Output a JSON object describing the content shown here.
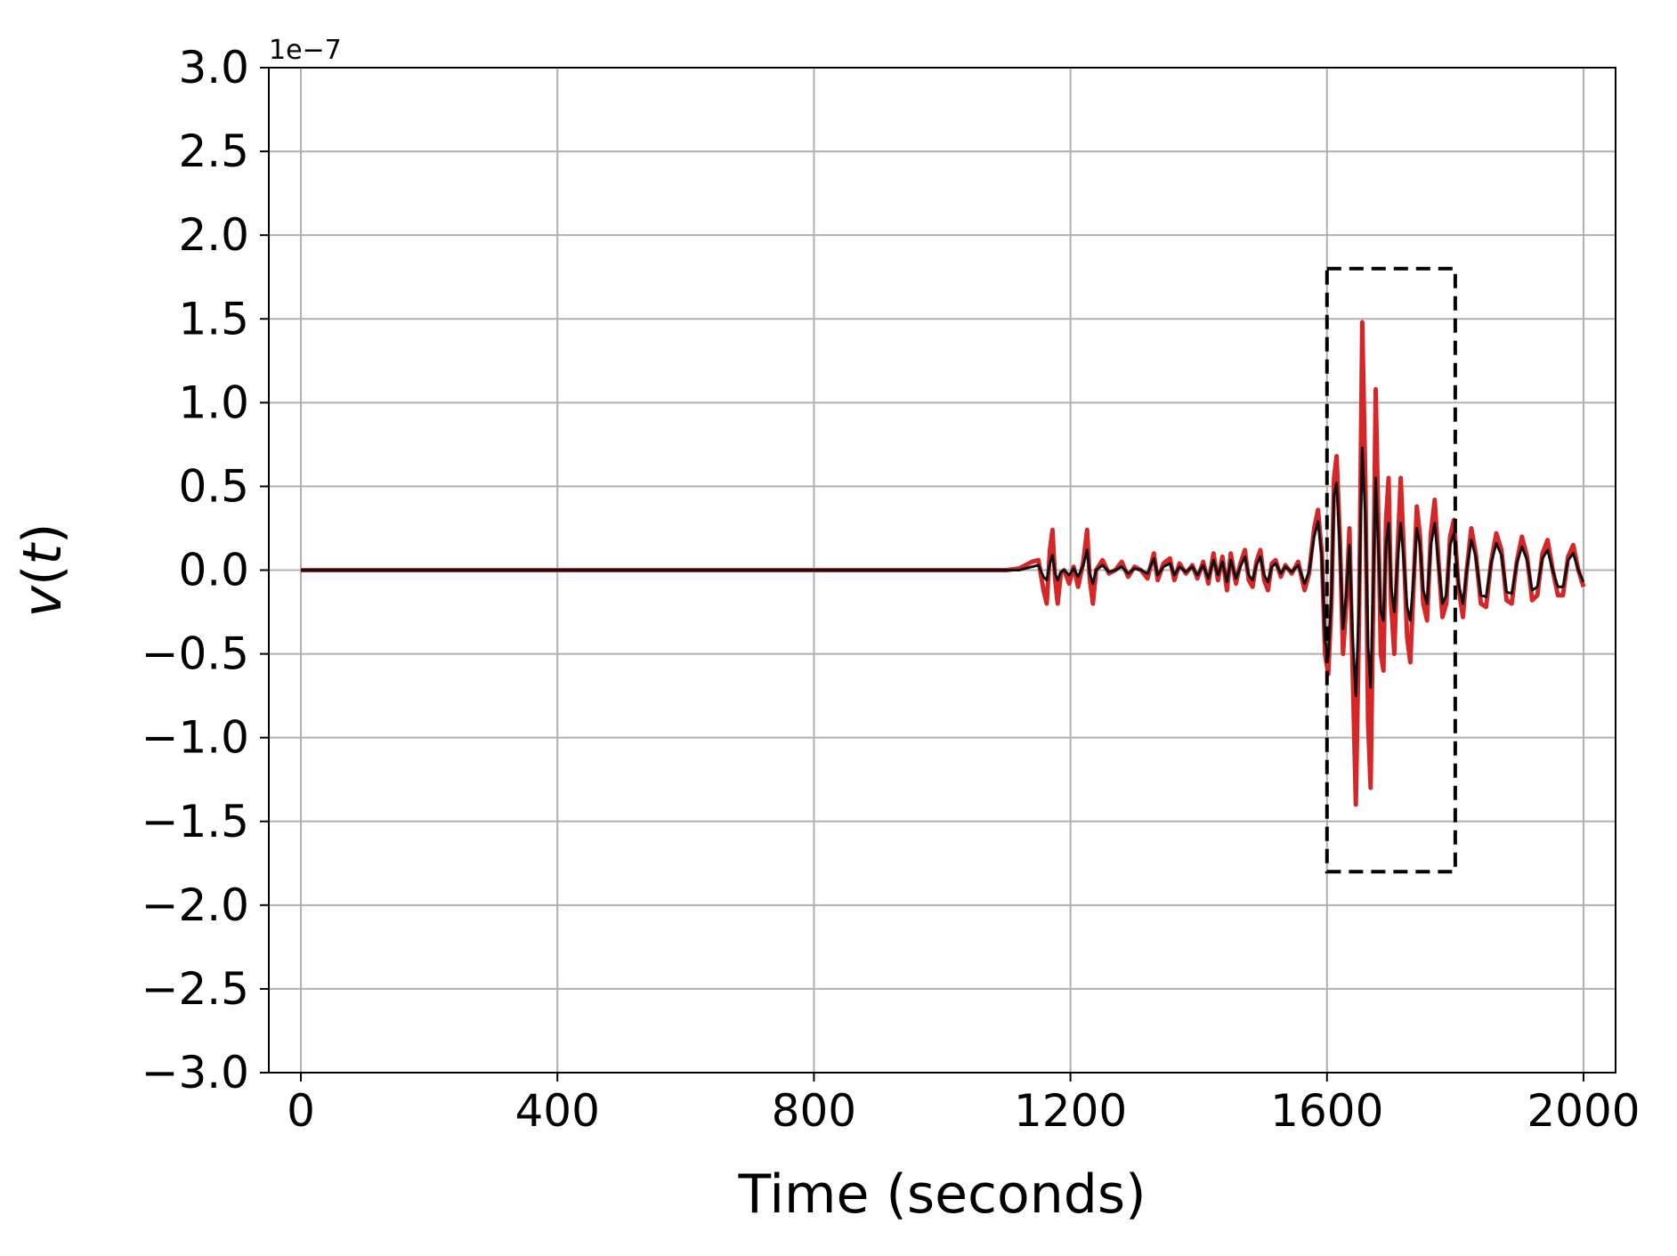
{
  "chart_data": {
    "type": "line",
    "xlabel": "Time (seconds)",
    "ylabel": "v(t)",
    "y_offset_text": "1e−7",
    "y_scale": 1e-07,
    "xlim": [
      -50,
      2050
    ],
    "ylim": [
      -3.0,
      3.0
    ],
    "x_ticks": [
      0,
      400,
      800,
      1200,
      1600,
      2000
    ],
    "x_tick_labels": [
      "0",
      "400",
      "800",
      "1200",
      "1600",
      "2000"
    ],
    "y_ticks": [
      3.0,
      2.5,
      2.0,
      1.5,
      1.0,
      0.5,
      0.0,
      -0.5,
      -1.0,
      -1.5,
      -2.0,
      -2.5,
      -3.0
    ],
    "y_tick_labels": [
      "3.0",
      "2.5",
      "2.0",
      "1.5",
      "1.0",
      "0.5",
      "0.0",
      "−0.5",
      "−1.0",
      "−1.5",
      "−2.0",
      "−2.5",
      "−3.0"
    ],
    "grid": true,
    "series": [
      {
        "color": "#d62728",
        "points": [
          [
            0,
            0
          ],
          [
            1100,
            0
          ],
          [
            1120,
            0.01
          ],
          [
            1140,
            0.05
          ],
          [
            1150,
            0.06
          ],
          [
            1158,
            -0.12
          ],
          [
            1163,
            -0.2
          ],
          [
            1168,
            0.12
          ],
          [
            1172,
            0.24
          ],
          [
            1176,
            -0.05
          ],
          [
            1180,
            -0.2
          ],
          [
            1185,
            -0.02
          ],
          [
            1190,
            0.0
          ],
          [
            1198,
            -0.08
          ],
          [
            1205,
            0.02
          ],
          [
            1212,
            -0.1
          ],
          [
            1220,
            0.05
          ],
          [
            1226,
            0.24
          ],
          [
            1230,
            -0.05
          ],
          [
            1235,
            -0.2
          ],
          [
            1240,
            0.0
          ],
          [
            1250,
            0.06
          ],
          [
            1260,
            -0.02
          ],
          [
            1270,
            0.0
          ],
          [
            1280,
            0.05
          ],
          [
            1290,
            -0.04
          ],
          [
            1300,
            0.02
          ],
          [
            1310,
            0.0
          ],
          [
            1320,
            -0.05
          ],
          [
            1330,
            0.1
          ],
          [
            1336,
            -0.06
          ],
          [
            1345,
            0.04
          ],
          [
            1355,
            0.07
          ],
          [
            1362,
            -0.06
          ],
          [
            1370,
            0.04
          ],
          [
            1380,
            -0.02
          ],
          [
            1390,
            0.03
          ],
          [
            1398,
            -0.05
          ],
          [
            1407,
            0.05
          ],
          [
            1415,
            -0.08
          ],
          [
            1423,
            0.1
          ],
          [
            1430,
            -0.06
          ],
          [
            1437,
            0.08
          ],
          [
            1444,
            -0.12
          ],
          [
            1450,
            0.1
          ],
          [
            1458,
            -0.08
          ],
          [
            1465,
            0.04
          ],
          [
            1472,
            0.12
          ],
          [
            1478,
            -0.06
          ],
          [
            1484,
            -0.1
          ],
          [
            1490,
            0.05
          ],
          [
            1496,
            0.12
          ],
          [
            1502,
            -0.06
          ],
          [
            1508,
            -0.12
          ],
          [
            1514,
            0.04
          ],
          [
            1520,
            0.06
          ],
          [
            1528,
            -0.04
          ],
          [
            1535,
            0.03
          ],
          [
            1545,
            -0.02
          ],
          [
            1555,
            0.05
          ],
          [
            1565,
            -0.12
          ],
          [
            1572,
            -0.02
          ],
          [
            1580,
            0.25
          ],
          [
            1586,
            0.36
          ],
          [
            1592,
            0.1
          ],
          [
            1597,
            -0.5
          ],
          [
            1602,
            -0.62
          ],
          [
            1607,
            -0.2
          ],
          [
            1611,
            0.55
          ],
          [
            1615,
            0.68
          ],
          [
            1620,
            0.2
          ],
          [
            1625,
            -0.5
          ],
          [
            1630,
            -0.2
          ],
          [
            1635,
            0.25
          ],
          [
            1640,
            -0.6
          ],
          [
            1645,
            -1.4
          ],
          [
            1650,
            -0.3
          ],
          [
            1655,
            1.48
          ],
          [
            1660,
            0.5
          ],
          [
            1664,
            -0.9
          ],
          [
            1668,
            -1.3
          ],
          [
            1672,
            -0.2
          ],
          [
            1676,
            1.08
          ],
          [
            1680,
            0.3
          ],
          [
            1684,
            -0.5
          ],
          [
            1688,
            -0.6
          ],
          [
            1692,
            0.3
          ],
          [
            1696,
            0.55
          ],
          [
            1700,
            -0.2
          ],
          [
            1705,
            -0.5
          ],
          [
            1710,
            0.1
          ],
          [
            1715,
            0.55
          ],
          [
            1720,
            0.1
          ],
          [
            1725,
            -0.4
          ],
          [
            1730,
            -0.55
          ],
          [
            1735,
            -0.1
          ],
          [
            1740,
            0.38
          ],
          [
            1745,
            0.2
          ],
          [
            1750,
            -0.2
          ],
          [
            1756,
            -0.3
          ],
          [
            1762,
            0.22
          ],
          [
            1768,
            0.42
          ],
          [
            1774,
            0.05
          ],
          [
            1780,
            -0.28
          ],
          [
            1786,
            -0.2
          ],
          [
            1792,
            0.2
          ],
          [
            1798,
            0.3
          ],
          [
            1805,
            -0.1
          ],
          [
            1812,
            -0.28
          ],
          [
            1818,
            0.0
          ],
          [
            1825,
            0.25
          ],
          [
            1832,
            0.1
          ],
          [
            1840,
            -0.2
          ],
          [
            1848,
            -0.22
          ],
          [
            1856,
            0.05
          ],
          [
            1864,
            0.22
          ],
          [
            1872,
            0.12
          ],
          [
            1880,
            -0.18
          ],
          [
            1888,
            -0.2
          ],
          [
            1896,
            0.05
          ],
          [
            1904,
            0.2
          ],
          [
            1912,
            0.08
          ],
          [
            1920,
            -0.18
          ],
          [
            1928,
            -0.15
          ],
          [
            1936,
            0.1
          ],
          [
            1944,
            0.18
          ],
          [
            1952,
            0.0
          ],
          [
            1960,
            -0.15
          ],
          [
            1968,
            -0.15
          ],
          [
            1976,
            0.08
          ],
          [
            1984,
            0.15
          ],
          [
            1992,
            0.0
          ],
          [
            2000,
            -0.1
          ]
        ]
      },
      {
        "color": "#111111",
        "points": [
          [
            0,
            0
          ],
          [
            1100,
            0
          ],
          [
            1120,
            0.0
          ],
          [
            1140,
            0.02
          ],
          [
            1150,
            0.03
          ],
          [
            1158,
            -0.04
          ],
          [
            1163,
            -0.06
          ],
          [
            1168,
            0.04
          ],
          [
            1172,
            0.09
          ],
          [
            1176,
            -0.02
          ],
          [
            1180,
            -0.06
          ],
          [
            1185,
            -0.01
          ],
          [
            1190,
            0.0
          ],
          [
            1198,
            -0.03
          ],
          [
            1205,
            0.01
          ],
          [
            1212,
            -0.04
          ],
          [
            1220,
            0.03
          ],
          [
            1226,
            0.12
          ],
          [
            1230,
            -0.02
          ],
          [
            1235,
            -0.08
          ],
          [
            1240,
            0.0
          ],
          [
            1250,
            0.03
          ],
          [
            1260,
            -0.01
          ],
          [
            1270,
            0.0
          ],
          [
            1280,
            0.02
          ],
          [
            1290,
            -0.02
          ],
          [
            1300,
            0.01
          ],
          [
            1310,
            0.0
          ],
          [
            1320,
            -0.02
          ],
          [
            1330,
            0.07
          ],
          [
            1336,
            -0.03
          ],
          [
            1345,
            0.02
          ],
          [
            1355,
            0.04
          ],
          [
            1362,
            -0.03
          ],
          [
            1370,
            0.02
          ],
          [
            1380,
            -0.01
          ],
          [
            1390,
            0.02
          ],
          [
            1398,
            -0.03
          ],
          [
            1407,
            0.03
          ],
          [
            1415,
            -0.05
          ],
          [
            1423,
            0.06
          ],
          [
            1430,
            -0.03
          ],
          [
            1437,
            0.05
          ],
          [
            1444,
            -0.07
          ],
          [
            1450,
            0.06
          ],
          [
            1458,
            -0.05
          ],
          [
            1465,
            0.02
          ],
          [
            1472,
            0.08
          ],
          [
            1478,
            -0.03
          ],
          [
            1484,
            -0.06
          ],
          [
            1490,
            0.03
          ],
          [
            1496,
            0.08
          ],
          [
            1502,
            -0.03
          ],
          [
            1508,
            -0.07
          ],
          [
            1514,
            0.02
          ],
          [
            1520,
            0.04
          ],
          [
            1528,
            -0.02
          ],
          [
            1535,
            0.02
          ],
          [
            1545,
            -0.01
          ],
          [
            1555,
            0.03
          ],
          [
            1565,
            -0.08
          ],
          [
            1572,
            -0.01
          ],
          [
            1580,
            0.2
          ],
          [
            1586,
            0.29
          ],
          [
            1592,
            0.08
          ],
          [
            1597,
            -0.42
          ],
          [
            1602,
            -0.52
          ],
          [
            1607,
            -0.15
          ],
          [
            1611,
            0.45
          ],
          [
            1615,
            0.52
          ],
          [
            1620,
            0.15
          ],
          [
            1625,
            -0.35
          ],
          [
            1630,
            -0.15
          ],
          [
            1635,
            0.15
          ],
          [
            1640,
            -0.4
          ],
          [
            1645,
            -0.75
          ],
          [
            1650,
            -0.2
          ],
          [
            1655,
            0.73
          ],
          [
            1660,
            0.3
          ],
          [
            1664,
            -0.45
          ],
          [
            1668,
            -0.7
          ],
          [
            1672,
            -0.1
          ],
          [
            1676,
            0.55
          ],
          [
            1680,
            0.15
          ],
          [
            1684,
            -0.25
          ],
          [
            1688,
            -0.3
          ],
          [
            1692,
            0.15
          ],
          [
            1696,
            0.28
          ],
          [
            1700,
            -0.1
          ],
          [
            1705,
            -0.25
          ],
          [
            1710,
            0.05
          ],
          [
            1715,
            0.28
          ],
          [
            1720,
            0.05
          ],
          [
            1725,
            -0.22
          ],
          [
            1730,
            -0.3
          ],
          [
            1735,
            -0.05
          ],
          [
            1740,
            0.25
          ],
          [
            1745,
            0.15
          ],
          [
            1750,
            -0.12
          ],
          [
            1756,
            -0.2
          ],
          [
            1762,
            0.15
          ],
          [
            1768,
            0.28
          ],
          [
            1774,
            0.03
          ],
          [
            1780,
            -0.2
          ],
          [
            1786,
            -0.15
          ],
          [
            1792,
            0.15
          ],
          [
            1798,
            0.22
          ],
          [
            1805,
            -0.08
          ],
          [
            1812,
            -0.2
          ],
          [
            1818,
            0.0
          ],
          [
            1825,
            0.18
          ],
          [
            1832,
            0.08
          ],
          [
            1840,
            -0.15
          ],
          [
            1848,
            -0.16
          ],
          [
            1856,
            0.04
          ],
          [
            1864,
            0.16
          ],
          [
            1872,
            0.09
          ],
          [
            1880,
            -0.13
          ],
          [
            1888,
            -0.14
          ],
          [
            1896,
            0.04
          ],
          [
            1904,
            0.14
          ],
          [
            1912,
            0.06
          ],
          [
            1920,
            -0.12
          ],
          [
            1928,
            -0.1
          ],
          [
            1936,
            0.07
          ],
          [
            1944,
            0.12
          ],
          [
            1952,
            0.0
          ],
          [
            1960,
            -0.1
          ],
          [
            1968,
            -0.1
          ],
          [
            1976,
            0.06
          ],
          [
            1984,
            0.1
          ],
          [
            1992,
            0.0
          ],
          [
            2000,
            -0.07
          ]
        ]
      }
    ],
    "annotations": [
      {
        "type": "dashed-rectangle",
        "x": [
          1600,
          1800
        ],
        "y": [
          -1.8,
          1.8
        ],
        "color": "#000000"
      }
    ]
  }
}
